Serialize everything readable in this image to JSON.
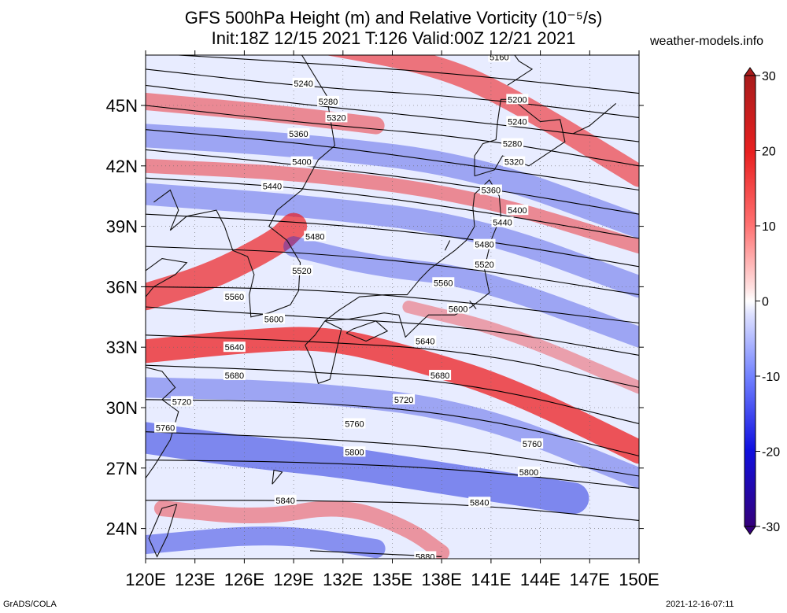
{
  "title_line1": "GFS 500hPa Height (m) and Relative Vorticity (10⁻⁵/s)",
  "title_line2": "Init:18Z 12/15 2021 T:126 Valid:00Z 12/21 2021",
  "site": "weather-models.info",
  "footer_left": "GrADS/COLA",
  "footer_right": "2021-12-16-07:11",
  "map": {
    "lon_range": [
      120,
      150
    ],
    "lat_range": [
      22.5,
      47.5
    ],
    "lon_ticks": [
      "120E",
      "123E",
      "126E",
      "129E",
      "132E",
      "135E",
      "138E",
      "141E",
      "144E",
      "147E",
      "150E"
    ],
    "lat_ticks": [
      "24N",
      "27N",
      "30N",
      "33N",
      "36N",
      "39N",
      "42N",
      "45N"
    ],
    "colors": {
      "positive": "#ee1111",
      "negative": "#1122dd",
      "frame": "#000000"
    }
  },
  "contours": [
    {
      "label": "5160",
      "pts": [
        [
          120,
          48.6
        ],
        [
          130,
          48.2
        ],
        [
          140,
          47.9
        ],
        [
          150,
          48.0
        ]
      ]
    },
    {
      "label": "5200",
      "pts": [
        [
          120,
          47.6
        ],
        [
          130,
          47.1
        ],
        [
          140,
          46.5
        ],
        [
          150,
          45.6
        ]
      ]
    },
    {
      "label": "5240",
      "pts": [
        [
          120,
          46.8
        ],
        [
          130,
          45.9
        ],
        [
          140,
          45.4
        ],
        [
          150,
          44.4
        ]
      ]
    },
    {
      "label": "5280",
      "pts": [
        [
          120,
          46.0
        ],
        [
          130,
          45.0
        ],
        [
          140,
          44.2
        ],
        [
          150,
          43.2
        ]
      ]
    },
    {
      "label": "5320",
      "pts": [
        [
          120,
          45.0
        ],
        [
          130,
          44.1
        ],
        [
          140,
          43.4
        ],
        [
          150,
          42.0
        ]
      ]
    },
    {
      "label": "5360",
      "pts": [
        [
          120,
          43.8
        ],
        [
          130,
          43.1
        ],
        [
          140,
          42.0
        ],
        [
          150,
          40.8
        ]
      ]
    },
    {
      "label": "5400",
      "pts": [
        [
          120,
          42.8
        ],
        [
          130,
          42.0
        ],
        [
          140,
          41.0
        ],
        [
          150,
          39.6
        ]
      ]
    },
    {
      "label": "5440",
      "pts": [
        [
          120,
          41.4
        ],
        [
          130,
          40.9
        ],
        [
          140,
          39.8
        ],
        [
          150,
          38.4
        ]
      ]
    },
    {
      "label": "5480",
      "pts": [
        [
          120,
          39.6
        ],
        [
          130,
          39.2
        ],
        [
          140,
          38.4
        ],
        [
          150,
          37.0
        ]
      ]
    },
    {
      "label": "5520",
      "pts": [
        [
          120,
          38.0
        ],
        [
          130,
          37.7
        ],
        [
          140,
          36.9
        ],
        [
          150,
          35.6
        ]
      ]
    },
    {
      "label": "5560",
      "pts": [
        [
          120,
          36.0
        ],
        [
          130,
          35.9
        ],
        [
          140,
          35.2
        ],
        [
          150,
          34.2
        ]
      ]
    },
    {
      "label": "5600",
      "pts": [
        [
          120,
          35.0
        ],
        [
          130,
          34.5
        ],
        [
          140,
          34.0
        ],
        [
          150,
          32.6
        ]
      ]
    },
    {
      "label": "5640",
      "pts": [
        [
          120,
          33.6
        ],
        [
          130,
          33.3
        ],
        [
          140,
          32.8
        ],
        [
          150,
          31.0
        ]
      ]
    },
    {
      "label": "5680",
      "pts": [
        [
          120,
          32.1
        ],
        [
          130,
          31.8
        ],
        [
          140,
          31.2
        ],
        [
          150,
          29.2
        ]
      ]
    },
    {
      "label": "5720",
      "pts": [
        [
          120,
          30.4
        ],
        [
          130,
          30.3
        ],
        [
          140,
          29.6
        ],
        [
          150,
          27.6
        ]
      ]
    },
    {
      "label": "5760",
      "pts": [
        [
          120,
          28.8
        ],
        [
          130,
          28.5
        ],
        [
          140,
          27.9
        ],
        [
          150,
          26.6
        ]
      ]
    },
    {
      "label": "5800",
      "pts": [
        [
          120,
          27.4
        ],
        [
          130,
          27.3
        ],
        [
          140,
          26.9
        ],
        [
          150,
          26.0
        ]
      ]
    },
    {
      "label": "5840",
      "pts": [
        [
          120,
          25.4
        ],
        [
          130,
          25.4
        ],
        [
          140,
          25.2
        ],
        [
          150,
          24.4
        ]
      ]
    },
    {
      "label": "5880",
      "pts": [
        [
          130,
          22.9
        ],
        [
          138,
          22.6
        ]
      ]
    }
  ],
  "contour_labels": [
    {
      "text": "5160",
      "lon": 141.5,
      "lat": 47.4
    },
    {
      "text": "5240",
      "lon": 129.6,
      "lat": 46.1
    },
    {
      "text": "5200",
      "lon": 142.6,
      "lat": 45.3
    },
    {
      "text": "5280",
      "lon": 131.1,
      "lat": 45.2
    },
    {
      "text": "5320",
      "lon": 131.6,
      "lat": 44.4
    },
    {
      "text": "5240",
      "lon": 142.6,
      "lat": 44.2
    },
    {
      "text": "5360",
      "lon": 129.3,
      "lat": 43.6
    },
    {
      "text": "5280",
      "lon": 142.3,
      "lat": 43.1
    },
    {
      "text": "5400",
      "lon": 129.5,
      "lat": 42.2
    },
    {
      "text": "5320",
      "lon": 142.4,
      "lat": 42.2
    },
    {
      "text": "5440",
      "lon": 127.7,
      "lat": 41.0
    },
    {
      "text": "5360",
      "lon": 141.0,
      "lat": 40.8
    },
    {
      "text": "5400",
      "lon": 142.6,
      "lat": 39.8
    },
    {
      "text": "5440",
      "lon": 141.7,
      "lat": 39.2
    },
    {
      "text": "5480",
      "lon": 130.3,
      "lat": 38.5
    },
    {
      "text": "5480",
      "lon": 140.6,
      "lat": 38.1
    },
    {
      "text": "5520",
      "lon": 129.5,
      "lat": 36.8
    },
    {
      "text": "5520",
      "lon": 140.6,
      "lat": 37.1
    },
    {
      "text": "5560",
      "lon": 138.1,
      "lat": 36.2
    },
    {
      "text": "5560",
      "lon": 125.4,
      "lat": 35.5
    },
    {
      "text": "5600",
      "lon": 127.8,
      "lat": 34.4
    },
    {
      "text": "5600",
      "lon": 139.0,
      "lat": 34.9
    },
    {
      "text": "5640",
      "lon": 125.4,
      "lat": 33.0
    },
    {
      "text": "5640",
      "lon": 137.0,
      "lat": 33.3
    },
    {
      "text": "5680",
      "lon": 125.4,
      "lat": 31.6
    },
    {
      "text": "5680",
      "lon": 137.9,
      "lat": 31.6
    },
    {
      "text": "5720",
      "lon": 122.2,
      "lat": 30.3
    },
    {
      "text": "5720",
      "lon": 135.7,
      "lat": 30.4
    },
    {
      "text": "5760",
      "lon": 121.2,
      "lat": 29.0
    },
    {
      "text": "5760",
      "lon": 132.7,
      "lat": 29.2
    },
    {
      "text": "5760",
      "lon": 143.5,
      "lat": 28.2
    },
    {
      "text": "5800",
      "lon": 132.7,
      "lat": 27.8
    },
    {
      "text": "5800",
      "lon": 143.3,
      "lat": 26.8
    },
    {
      "text": "5840",
      "lon": 128.5,
      "lat": 25.4
    },
    {
      "text": "5840",
      "lon": 140.3,
      "lat": 25.3
    },
    {
      "text": "5880",
      "lon": 137.0,
      "lat": 22.6
    }
  ],
  "colorbar": {
    "min": -30,
    "max": 30,
    "ticks": [
      "30",
      "20",
      "10",
      "0",
      "-10",
      "-20",
      "-30"
    ],
    "tick_values": [
      30,
      20,
      10,
      0,
      -10,
      -20,
      -30
    ]
  }
}
